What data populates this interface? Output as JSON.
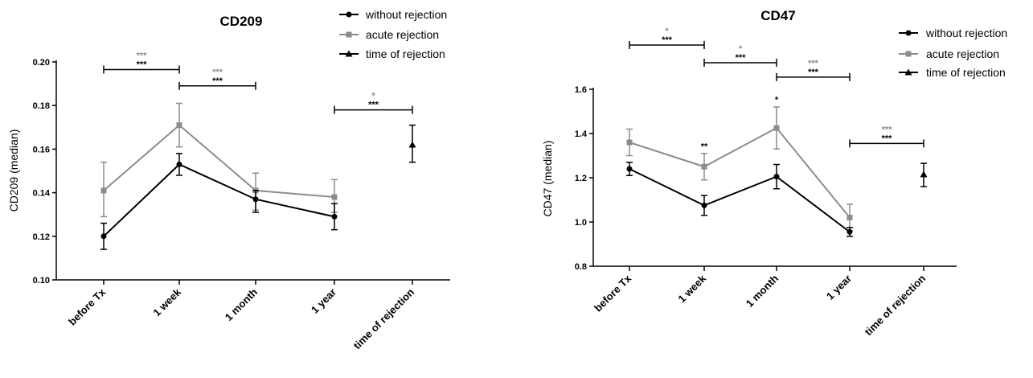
{
  "colors": {
    "without": "#000000",
    "acute": "#8c8c8c",
    "sig_black": "#000000",
    "sig_gray": "#8c8c8c"
  },
  "chart_data": [
    {
      "type": "line",
      "title": "CD209",
      "ylabel": "CD209 (median)",
      "xlabel": "",
      "categories": [
        "before Tx",
        "1 week",
        "1 month",
        "1 year",
        "time of rejection"
      ],
      "ylim": [
        0.1,
        0.2
      ],
      "yticks": [
        "0.10",
        "0.12",
        "0.14",
        "0.16",
        "0.18",
        "0.20"
      ],
      "legend_position": "top-right",
      "series": [
        {
          "name": "without rejection",
          "marker": "circle",
          "color": "#000000",
          "values": [
            0.12,
            0.153,
            0.137,
            0.129,
            null
          ],
          "err": [
            [
              0.114,
              0.126
            ],
            [
              0.148,
              0.158
            ],
            [
              0.131,
              0.141
            ],
            [
              0.123,
              0.135
            ],
            null
          ]
        },
        {
          "name": "acute rejection",
          "marker": "square",
          "color": "#8c8c8c",
          "values": [
            0.141,
            0.171,
            0.141,
            0.138,
            null
          ],
          "err": [
            [
              0.129,
              0.154
            ],
            [
              0.161,
              0.181
            ],
            [
              0.132,
              0.149
            ],
            [
              0.131,
              0.146
            ],
            null
          ]
        },
        {
          "name": "time of rejection",
          "marker": "triangle",
          "color": "#000000",
          "values": [
            null,
            null,
            null,
            null,
            0.162
          ],
          "err": [
            null,
            null,
            null,
            null,
            [
              0.154,
              0.171
            ]
          ]
        }
      ],
      "brackets": [
        {
          "from": 0,
          "to": 1,
          "y": 0.1965,
          "labels": [
            {
              "text": "***",
              "color": "gray"
            },
            {
              "text": "***",
              "color": "black"
            }
          ]
        },
        {
          "from": 1,
          "to": 2,
          "y": 0.189,
          "labels": [
            {
              "text": "***",
              "color": "gray"
            },
            {
              "text": "***",
              "color": "black"
            }
          ]
        },
        {
          "from": 3,
          "to": 4,
          "y": 0.178,
          "labels": [
            {
              "text": "*",
              "color": "gray"
            },
            {
              "text": "***",
              "color": "black"
            }
          ]
        }
      ],
      "point_labels": []
    },
    {
      "type": "line",
      "title": "CD47",
      "ylabel": "CD47 (median)",
      "xlabel": "",
      "categories": [
        "before Tx",
        "1 week",
        "1 month",
        "1 year",
        "time of rejection"
      ],
      "ylim": [
        0.8,
        1.6
      ],
      "yticks": [
        "0.8",
        "1.0",
        "1.2",
        "1.4",
        "1.6"
      ],
      "legend_position": "top-right",
      "series": [
        {
          "name": "without rejection",
          "marker": "circle",
          "color": "#000000",
          "values": [
            1.24,
            1.075,
            1.205,
            0.955,
            null
          ],
          "err": [
            [
              1.21,
              1.27
            ],
            [
              1.03,
              1.12
            ],
            [
              1.15,
              1.26
            ],
            [
              0.935,
              0.975
            ],
            null
          ]
        },
        {
          "name": "acute rejection",
          "marker": "square",
          "color": "#8c8c8c",
          "values": [
            1.36,
            1.25,
            1.425,
            1.02,
            null
          ],
          "err": [
            [
              1.3,
              1.42
            ],
            [
              1.19,
              1.31
            ],
            [
              1.33,
              1.52
            ],
            [
              0.96,
              1.08
            ],
            null
          ]
        },
        {
          "name": "time of rejection",
          "marker": "triangle",
          "color": "#000000",
          "values": [
            null,
            null,
            null,
            null,
            1.215
          ],
          "err": [
            null,
            null,
            null,
            null,
            [
              1.16,
              1.265
            ]
          ]
        }
      ],
      "brackets": [
        {
          "from": 0,
          "to": 1,
          "y": 1.8,
          "labels": [
            {
              "text": "*",
              "color": "gray"
            },
            {
              "text": "***",
              "color": "black"
            }
          ]
        },
        {
          "from": 1,
          "to": 2,
          "y": 1.72,
          "labels": [
            {
              "text": "*",
              "color": "gray"
            },
            {
              "text": "***",
              "color": "black"
            }
          ]
        },
        {
          "from": 2,
          "to": 3,
          "y": 1.655,
          "labels": [
            {
              "text": "***",
              "color": "gray"
            },
            {
              "text": "***",
              "color": "black"
            }
          ]
        },
        {
          "from": 3,
          "to": 4,
          "y": 1.355,
          "labels": [
            {
              "text": "***",
              "color": "gray"
            },
            {
              "text": "***",
              "color": "black"
            }
          ]
        }
      ],
      "point_labels": [
        {
          "category": 1,
          "y": 1.33,
          "text": "**"
        },
        {
          "category": 2,
          "y": 1.54,
          "text": "*"
        }
      ]
    }
  ]
}
